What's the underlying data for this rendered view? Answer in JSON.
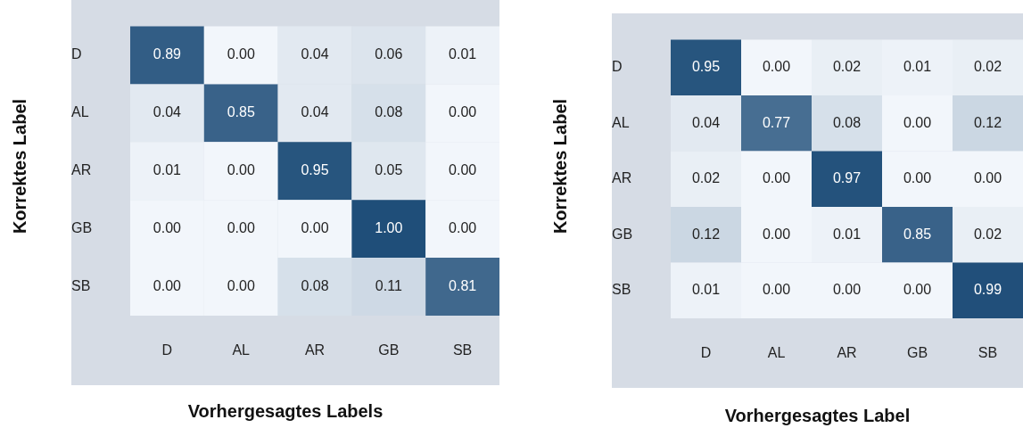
{
  "chart_data": [
    {
      "type": "heatmap",
      "data_labels": true,
      "xlabel": "Vorhergesagtes Labels",
      "ylabel": "Korrektes Label",
      "categories": [
        "D",
        "AL",
        "AR",
        "GB",
        "SB"
      ],
      "y_categories": [
        "D",
        "AL",
        "AR",
        "GB",
        "SB"
      ],
      "cells": [
        [
          0.89,
          0.0,
          0.04,
          0.06,
          0.01
        ],
        [
          0.04,
          0.85,
          0.04,
          0.08,
          0.0
        ],
        [
          0.01,
          0.0,
          0.95,
          0.05,
          0.0
        ],
        [
          0.0,
          0.0,
          0.0,
          1.0,
          0.0
        ],
        [
          0.0,
          0.0,
          0.08,
          0.11,
          0.81
        ]
      ],
      "cell_labels": [
        [
          "0.89",
          "0.00",
          "0.04",
          "0.06",
          "0.01"
        ],
        [
          "0.04",
          "0.85",
          "0.04",
          "0.08",
          "0.00"
        ],
        [
          "0.01",
          "0.00",
          "0.95",
          "0.05",
          "0.00"
        ],
        [
          "0.00",
          "0.00",
          "0.00",
          "1.00",
          "0.00"
        ],
        [
          "0.00",
          "0.00",
          "0.08",
          "0.11",
          "0.81"
        ]
      ]
    },
    {
      "type": "heatmap",
      "data_labels": true,
      "xlabel": "Vorhergesagtes Label",
      "ylabel": "Korrektes Label",
      "categories": [
        "D",
        "AL",
        "AR",
        "GB",
        "SB"
      ],
      "y_categories": [
        "D",
        "AL",
        "AR",
        "GB",
        "SB"
      ],
      "cells": [
        [
          0.95,
          0.0,
          0.02,
          0.01,
          0.02
        ],
        [
          0.04,
          0.77,
          0.08,
          0.0,
          0.12
        ],
        [
          0.02,
          0.0,
          0.97,
          0.0,
          0.0
        ],
        [
          0.12,
          0.0,
          0.01,
          0.85,
          0.02
        ],
        [
          0.01,
          0.0,
          0.0,
          0.0,
          0.99
        ]
      ],
      "cell_labels": [
        [
          "0.95",
          "0.00",
          "0.02",
          "0.01",
          "0.02"
        ],
        [
          "0.04",
          "0.77",
          "0.08",
          "0.00",
          "0.12"
        ],
        [
          "0.02",
          "0.00",
          "0.97",
          "0.00",
          "0.00"
        ],
        [
          "0.12",
          "0.00",
          "0.01",
          "0.85",
          "0.02"
        ],
        [
          "0.01",
          "0.00",
          "0.00",
          "0.00",
          "0.99"
        ]
      ]
    }
  ]
}
